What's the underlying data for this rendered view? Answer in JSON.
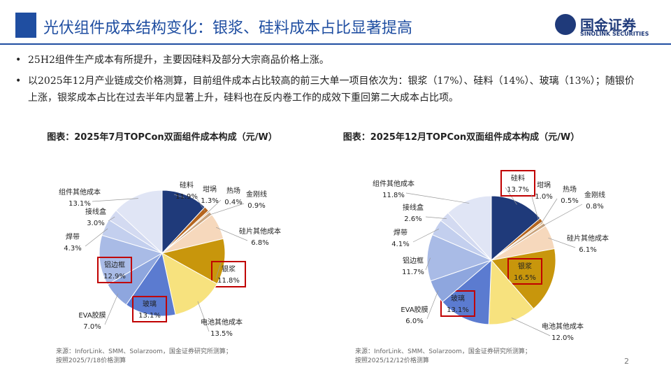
{
  "header": {
    "title": "光伏组件成本结构变化：银浆、硅料成本占比显著提高",
    "logo_cn": "国金证券",
    "logo_en": "SINOLINK SECURITIES"
  },
  "bullets": [
    "25H2组件生产成本有所提升，主要因硅料及部分大宗商品价格上涨。",
    "以2025年12月产业链成交价格测算，目前组件成本占比较高的前三大单一项目依次为：银浆（17%）、硅料（14%）、玻璃（13%）；随银价上涨，银浆成本占比在过去半年内显著上升，硅料也在反内卷工作的成效下重回第二大成本占比项。"
  ],
  "page": "2",
  "chart_data": [
    {
      "type": "pie",
      "title": "图表：2025年7月TOPCon双面组件成本构成（元/W）",
      "categories": [
        "硅料",
        "坩埚",
        "热场",
        "金刚线",
        "硅片其他成本",
        "银浆",
        "电池其他成本",
        "玻璃",
        "EVA胶膜",
        "铝边框",
        "焊带",
        "接线盒",
        "组件其他成本"
      ],
      "values": [
        11.9,
        1.3,
        0.4,
        0.9,
        6.8,
        11.8,
        13.5,
        13.1,
        7.0,
        12.9,
        4.3,
        3.0,
        13.1
      ],
      "value_labels": [
        "11.9%",
        "1.3%",
        "0.4%",
        "0.9%",
        "6.8%",
        "11.8%",
        "13.5%",
        "13.1%",
        "7.0%",
        "12.9%",
        "4.3%",
        "3.0%",
        "13.1%"
      ],
      "colors": [
        "#1f3a7a",
        "#b5651d",
        "#e8c9a0",
        "#c9a27a",
        "#f6d8bc",
        "#c8960c",
        "#f7e27e",
        "#5b7bd0",
        "#8ea6de",
        "#a9bbe6",
        "#c3cfee",
        "#d3daf1",
        "#e0e5f5"
      ],
      "highlighted": [
        5,
        7,
        9
      ],
      "notes": [
        "来源：InforLink、SMM、Solarzoom，国金证券研究所测算；",
        "按照2025/7/18价格测算"
      ]
    },
    {
      "type": "pie",
      "title": "图表：2025年12月TOPCon双面组件成本构成（元/W）",
      "categories": [
        "硅料",
        "坩埚",
        "热场",
        "金刚线",
        "硅片其他成本",
        "银浆",
        "电池其他成本",
        "玻璃",
        "EVA胶膜",
        "铝边框",
        "焊带",
        "接线盒",
        "组件其他成本"
      ],
      "values": [
        13.7,
        1.0,
        0.5,
        0.8,
        6.1,
        16.5,
        12.0,
        13.1,
        6.0,
        11.7,
        4.1,
        2.6,
        11.8
      ],
      "value_labels": [
        "13.7%",
        "1.0%",
        "0.5%",
        "0.8%",
        "6.1%",
        "16.5%",
        "12.0%",
        "13.1%",
        "6.0%",
        "11.7%",
        "4.1%",
        "2.6%",
        "11.8%"
      ],
      "colors": [
        "#1f3a7a",
        "#b5651d",
        "#e8c9a0",
        "#c9a27a",
        "#f6d8bc",
        "#c8960c",
        "#f7e27e",
        "#5b7bd0",
        "#8ea6de",
        "#a9bbe6",
        "#c3cfee",
        "#d3daf1",
        "#e0e5f5"
      ],
      "highlighted": [
        0,
        5,
        7
      ],
      "notes": [
        "来源：InforLink、SMM、Solarzoom，国金证券研究所测算；",
        "按照2025/12/12价格测算"
      ]
    }
  ]
}
